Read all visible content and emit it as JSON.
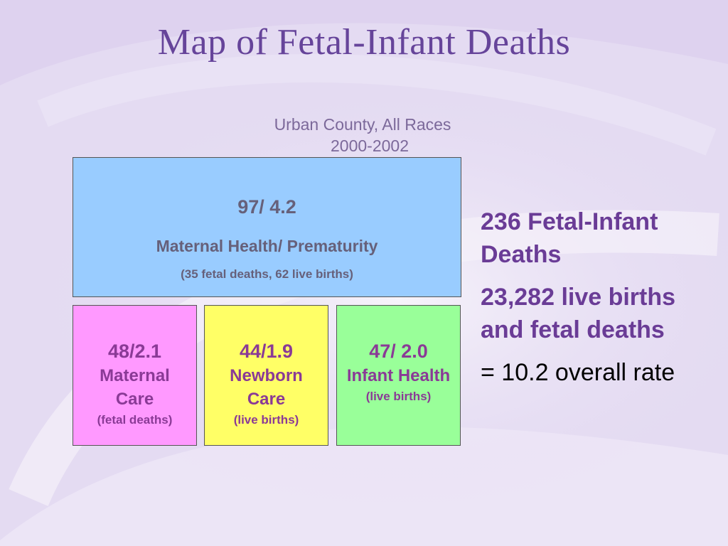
{
  "slide": {
    "title": "Map of Fetal-Infant Deaths",
    "subtitle": {
      "line1": "Urban County,  All Races",
      "line2": "2000-2002"
    }
  },
  "top_box": {
    "value": "97/ 4.2",
    "label": "Maternal Health/ Prematurity",
    "note": "(35 fetal deaths, 62 live births)",
    "color": "#99ccff"
  },
  "bottom_boxes": [
    {
      "value": "48/2.1",
      "label": "Maternal Care",
      "note": "(fetal deaths)",
      "color": "#ff99ff"
    },
    {
      "value": "44/1.9",
      "label": "Newborn Care",
      "note": "(live births)",
      "color": "#ffff66"
    },
    {
      "value": "47/ 2.0",
      "label": "Infant Health",
      "note": "(live births)",
      "color": "#99ff99"
    }
  ],
  "side_panel": {
    "deaths": "236 Fetal-Infant Deaths",
    "births": "23,282 live births and fetal deaths",
    "rate": "= 10.2 overall rate"
  },
  "colors": {
    "title": "#66449a",
    "background": "#e6ddf3",
    "side_text": "#6a3c96"
  }
}
